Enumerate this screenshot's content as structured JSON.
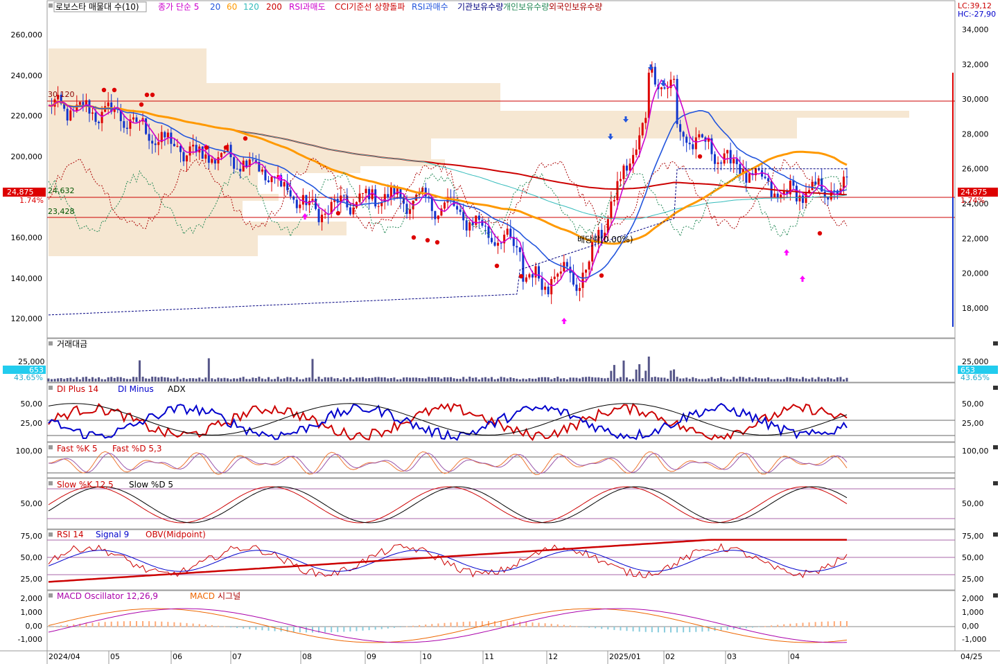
{
  "top_legend": {
    "title": "로보스타 매물대 수(10)",
    "items": [
      {
        "text": "종가 단순 5",
        "color": "#cc00cc"
      },
      {
        "text": "20",
        "color": "#2255dd"
      },
      {
        "text": "60",
        "color": "#ff9900"
      },
      {
        "text": "120",
        "color": "#33bbbb"
      },
      {
        "text": "200",
        "color": "#cc0000"
      },
      {
        "text": "RSI과매도",
        "color": "#cc00cc"
      },
      {
        "text": "CCI기준선 상향돌파",
        "color": "#cc0000"
      },
      {
        "text": "RSI과매수",
        "color": "#2255dd"
      },
      {
        "text": "기관보유수량",
        "color": "#000080"
      },
      {
        "text": "개인보유수량",
        "color": "#228855"
      },
      {
        "text": "외국인보유수량",
        "color": "#aa0000"
      }
    ]
  },
  "top_right": {
    "lc": "LC:39,12",
    "hc": "HC:-27,90"
  },
  "price_panel": {
    "left_ticks": [
      "260,000",
      "240,000",
      "220,000",
      "200,000",
      "160,000",
      "140,000",
      "120,000"
    ],
    "right_ticks": [
      "34,000",
      "32,000",
      "30,000",
      "28,000",
      "26,000",
      "24,000",
      "22,000",
      "20,000",
      "18,000"
    ],
    "current_price": "24,875",
    "change_pct": "1.74%",
    "level_high": "30,120",
    "level_1": "24,632",
    "level_2": "23,428",
    "dividend_label": "배당락(0.00%)"
  },
  "volume_panel": {
    "title": "거래대금",
    "tick": "25,000",
    "value": "653",
    "pct": "43.65%"
  },
  "dmi_panel": {
    "labels": [
      {
        "text": "DI Plus 14",
        "color": "#cc0000"
      },
      {
        "text": "DI Minus",
        "color": "#0000cc"
      },
      {
        "text": "ADX",
        "color": "#000000"
      }
    ],
    "ticks": [
      "50,00",
      "25,00"
    ]
  },
  "fast_panel": {
    "labels": [
      {
        "text": "Fast %K 5",
        "color": "#cc0000"
      },
      {
        "text": "Fast %D 5,3",
        "color": "#cc0000"
      }
    ],
    "ticks": [
      "100,00"
    ]
  },
  "slow_panel": {
    "labels": [
      {
        "text": "Slow %K 12,5",
        "color": "#cc0000"
      },
      {
        "text": "Slow %D 5",
        "color": "#000000"
      }
    ],
    "ticks": [
      "50,00"
    ]
  },
  "rsi_panel": {
    "labels": [
      {
        "text": "RSI 14",
        "color": "#cc0000"
      },
      {
        "text": "Signal 9",
        "color": "#0000cc"
      },
      {
        "text": "OBV(Midpoint)",
        "color": "#cc0000"
      }
    ],
    "ticks": [
      "75,00",
      "50,00",
      "25,00"
    ]
  },
  "macd_panel": {
    "labels": [
      {
        "text": "MACD Oscillator 12,26,9",
        "color": "#aa00aa"
      },
      {
        "text": "MACD",
        "color": "#ee6600"
      },
      {
        "text": "시그널",
        "color": "#aa0000"
      }
    ],
    "ticks": [
      "2,000",
      "1,000",
      "0,00",
      "-1,000"
    ]
  },
  "x_axis": {
    "labels": [
      "2024/04",
      "05",
      "06",
      "07",
      "08",
      "09",
      "10",
      "11",
      "12",
      "2025/01",
      "02",
      "03",
      "04"
    ],
    "end_label": "04/25"
  },
  "chart_data": {
    "type": "line",
    "title": "로보스타 매물대 수(10)",
    "x_months": [
      "2024/04",
      "05",
      "06",
      "07",
      "08",
      "09",
      "10",
      "11",
      "12",
      "2025/01",
      "02",
      "03",
      "04"
    ],
    "price_close_approx": [
      29500,
      29200,
      27000,
      26500,
      23500,
      24500,
      23800,
      21500,
      19500,
      29000,
      27000,
      24500,
      24875
    ],
    "ma_lines": [
      "5",
      "20",
      "60",
      "120",
      "200"
    ],
    "current_price": 24875,
    "change_pct": 1.74,
    "horizontal_levels": [
      30120,
      24632,
      23428
    ],
    "right_axis_range": [
      17000,
      34500
    ],
    "left_axis_range": [
      110000,
      268000
    ]
  },
  "colors": {
    "up": "#dd0000",
    "down": "#1133cc",
    "profile": "#f5e6d0",
    "ma5": "#cc00cc",
    "ma20": "#2255dd",
    "ma60": "#ff9900",
    "ma120": "#33bbbb",
    "ma200": "#cc0000"
  }
}
